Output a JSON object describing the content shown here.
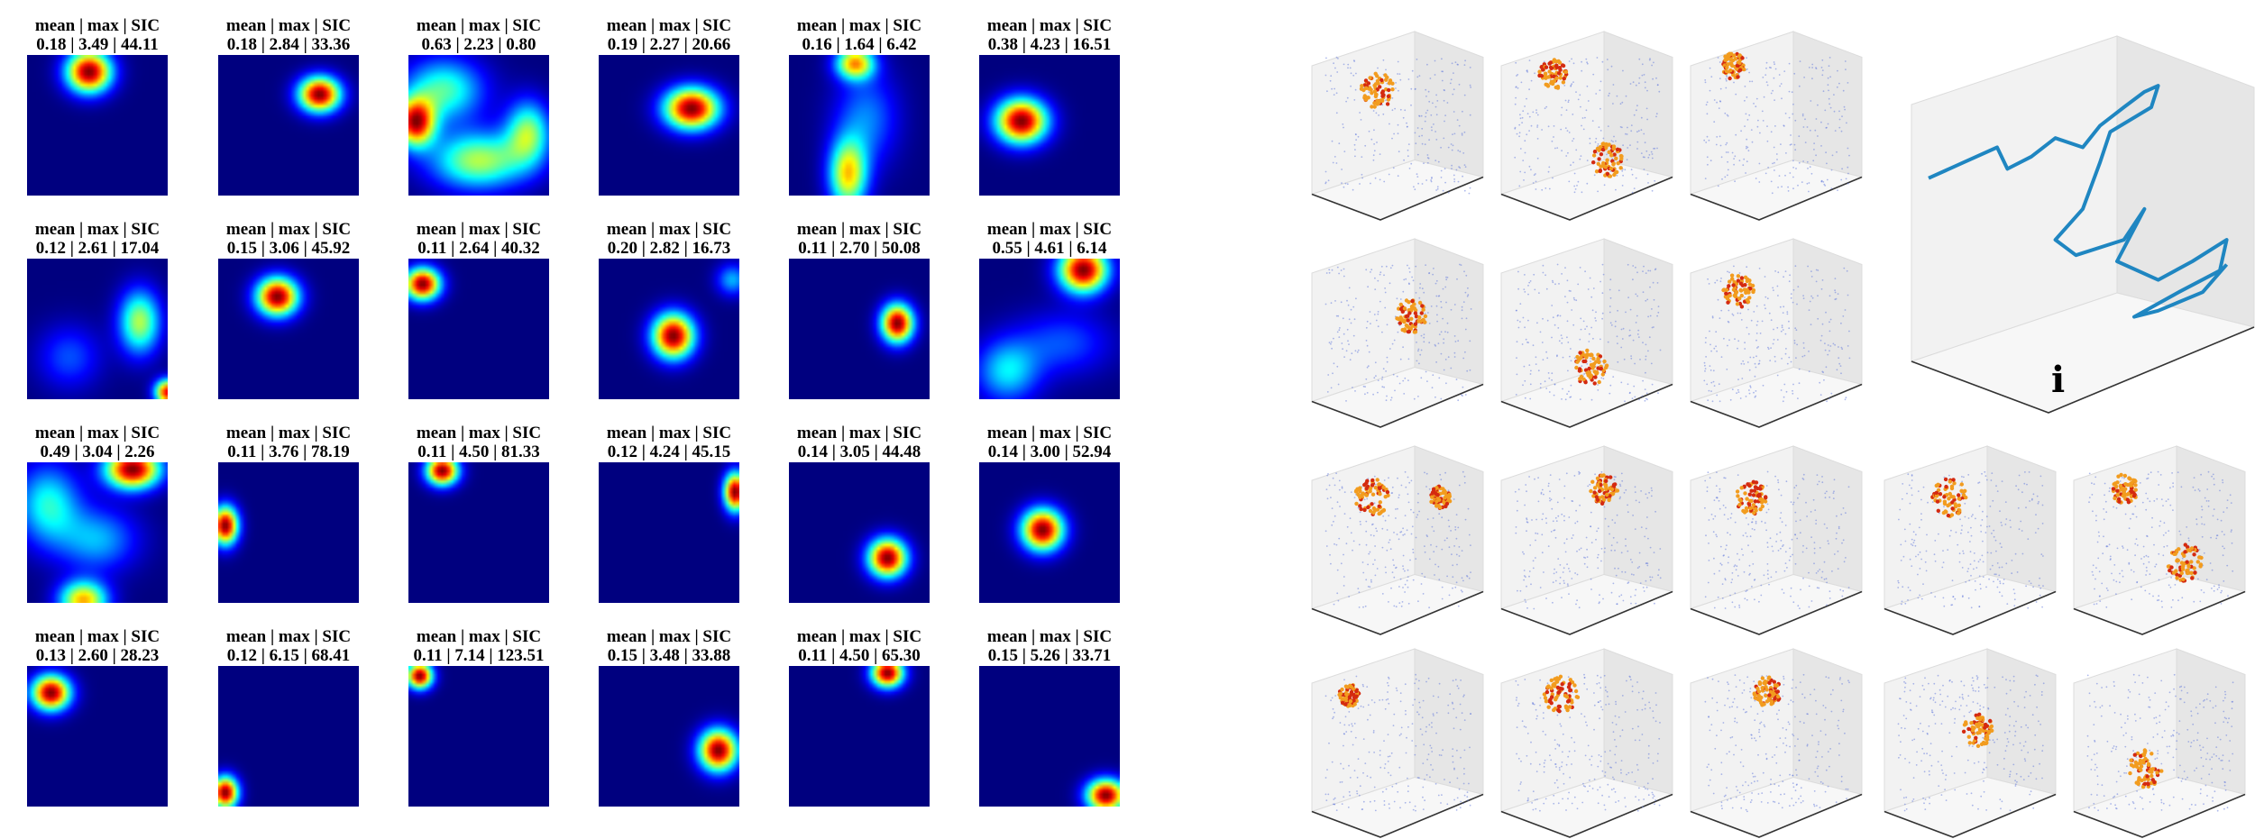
{
  "chart_data": [
    {
      "type": "heatmap",
      "panels": [
        {
          "title_line1": "mean | max | SIC",
          "title_line2": "0.18 | 3.49 | 44.11",
          "mean": 0.18,
          "max": 3.49,
          "sic": 44.11
        },
        {
          "title_line1": "mean | max | SIC",
          "title_line2": "0.18 | 2.84 | 33.36",
          "mean": 0.18,
          "max": 2.84,
          "sic": 33.36
        },
        {
          "title_line1": "mean | max | SIC",
          "title_line2": "0.63 | 2.23 | 0.80",
          "mean": 0.63,
          "max": 2.23,
          "sic": 0.8
        },
        {
          "title_line1": "mean | max | SIC",
          "title_line2": "0.19 | 2.27 | 20.66",
          "mean": 0.19,
          "max": 2.27,
          "sic": 20.66
        },
        {
          "title_line1": "mean | max | SIC",
          "title_line2": "0.16 | 1.64 | 6.42",
          "mean": 0.16,
          "max": 1.64,
          "sic": 6.42
        },
        {
          "title_line1": "mean | max | SIC",
          "title_line2": "0.38 | 4.23 | 16.51",
          "mean": 0.38,
          "max": 4.23,
          "sic": 16.51
        },
        {
          "title_line1": "mean | max | SIC",
          "title_line2": "0.12 | 2.61 | 17.04",
          "mean": 0.12,
          "max": 2.61,
          "sic": 17.04
        },
        {
          "title_line1": "mean | max | SIC",
          "title_line2": "0.15 | 3.06 | 45.92",
          "mean": 0.15,
          "max": 3.06,
          "sic": 45.92
        },
        {
          "title_line1": "mean | max | SIC",
          "title_line2": "0.11 | 2.64 | 40.32",
          "mean": 0.11,
          "max": 2.64,
          "sic": 40.32
        },
        {
          "title_line1": "mean | max | SIC",
          "title_line2": "0.20 | 2.82 | 16.73",
          "mean": 0.2,
          "max": 2.82,
          "sic": 16.73
        },
        {
          "title_line1": "mean | max | SIC",
          "title_line2": "0.11 | 2.70 | 50.08",
          "mean": 0.11,
          "max": 2.7,
          "sic": 50.08
        },
        {
          "title_line1": "mean | max | SIC",
          "title_line2": "0.55 | 4.61 | 6.14",
          "mean": 0.55,
          "max": 4.61,
          "sic": 6.14
        },
        {
          "title_line1": "mean | max | SIC",
          "title_line2": "0.49 | 3.04 | 2.26",
          "mean": 0.49,
          "max": 3.04,
          "sic": 2.26
        },
        {
          "title_line1": "mean | max | SIC",
          "title_line2": "0.11 | 3.76 | 78.19",
          "mean": 0.11,
          "max": 3.76,
          "sic": 78.19
        },
        {
          "title_line1": "mean | max | SIC",
          "title_line2": "0.11 | 4.50 | 81.33",
          "mean": 0.11,
          "max": 4.5,
          "sic": 81.33
        },
        {
          "title_line1": "mean | max | SIC",
          "title_line2": "0.12 | 4.24 | 45.15",
          "mean": 0.12,
          "max": 4.24,
          "sic": 45.15
        },
        {
          "title_line1": "mean | max | SIC",
          "title_line2": "0.14 | 3.05 | 44.48",
          "mean": 0.14,
          "max": 3.05,
          "sic": 44.48
        },
        {
          "title_line1": "mean | max | SIC",
          "title_line2": "0.14 | 3.00 | 52.94",
          "mean": 0.14,
          "max": 3.0,
          "sic": 52.94
        },
        {
          "title_line1": "mean | max | SIC",
          "title_line2": "0.13 | 2.60 | 28.23",
          "mean": 0.13,
          "max": 2.6,
          "sic": 28.23
        },
        {
          "title_line1": "mean | max | SIC",
          "title_line2": "0.12 | 6.15 | 68.41",
          "mean": 0.12,
          "max": 6.15,
          "sic": 68.41
        },
        {
          "title_line1": "mean | max | SIC",
          "title_line2": "0.11 | 7.14 | 123.51",
          "mean": 0.11,
          "max": 7.14,
          "sic": 123.51
        },
        {
          "title_line1": "mean | max | SIC",
          "title_line2": "0.15 | 3.48 | 33.88",
          "mean": 0.15,
          "max": 3.48,
          "sic": 33.88
        },
        {
          "title_line1": "mean | max | SIC",
          "title_line2": "0.11 | 4.50 | 65.30",
          "mean": 0.11,
          "max": 4.5,
          "sic": 65.3
        },
        {
          "title_line1": "mean | max | SIC",
          "title_line2": "0.15 | 5.26 | 33.71",
          "mean": 0.15,
          "max": 5.26,
          "sic": 33.71
        }
      ],
      "colormap": [
        "#00007f",
        "#0000ff",
        "#007fff",
        "#00ffff",
        "#7fff7f",
        "#ffff00",
        "#ff7f00",
        "#ff0000",
        "#7f0000"
      ]
    },
    {
      "type": "scatter",
      "panel_label": "i",
      "point_colors": {
        "low": "#6a7fdc",
        "high": "#f29c1f",
        "peak": "#d42a10"
      },
      "trajectory_color": "#1f86c1"
    }
  ]
}
